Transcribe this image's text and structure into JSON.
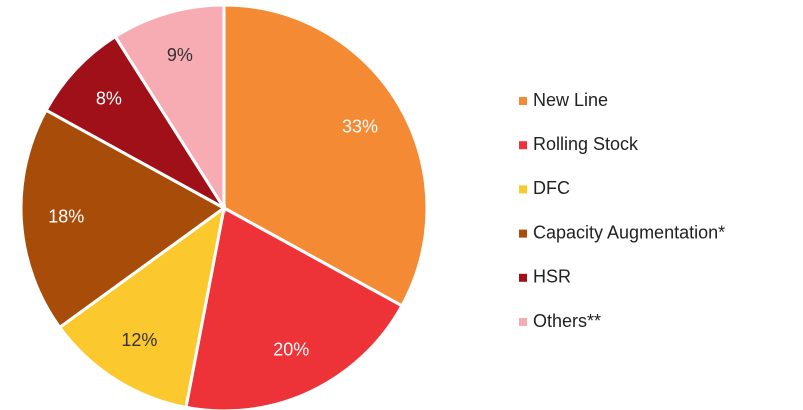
{
  "chart_data": {
    "type": "pie",
    "categories": [
      "New Line",
      "Rolling Stock",
      "DFC",
      "Capacity Augmentation*",
      "HSR",
      "Others**"
    ],
    "values": [
      33,
      20,
      12,
      18,
      8,
      9
    ],
    "value_labels": [
      "33%",
      "20%",
      "12%",
      "18%",
      "8%",
      "9%"
    ],
    "colors": [
      "#f58a35",
      "#ee3338",
      "#fbc82e",
      "#a84c0a",
      "#a01018",
      "#f7abb3"
    ],
    "label_colors": [
      "#ffffff",
      "#ffffff",
      "#333333",
      "#ffffff",
      "#ffffff",
      "#333333"
    ],
    "legend": "right"
  }
}
